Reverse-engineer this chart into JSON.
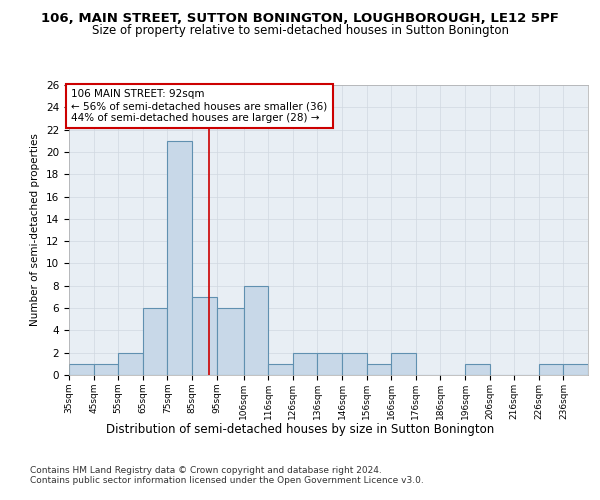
{
  "title1": "106, MAIN STREET, SUTTON BONINGTON, LOUGHBOROUGH, LE12 5PF",
  "title2": "Size of property relative to semi-detached houses in Sutton Bonington",
  "xlabel": "Distribution of semi-detached houses by size in Sutton Bonington",
  "ylabel": "Number of semi-detached properties",
  "footer1": "Contains HM Land Registry data © Crown copyright and database right 2024.",
  "footer2": "Contains public sector information licensed under the Open Government Licence v3.0.",
  "annotation_line1": "106 MAIN STREET: 92sqm",
  "annotation_line2": "← 56% of semi-detached houses are smaller (36)",
  "annotation_line3": "44% of semi-detached houses are larger (28) →",
  "subject_value": 92,
  "bin_edges": [
    35,
    45,
    55,
    65,
    75,
    85,
    95,
    106,
    116,
    126,
    136,
    146,
    156,
    166,
    176,
    186,
    196,
    206,
    216,
    226,
    236,
    246
  ],
  "bin_labels": [
    "35sqm",
    "45sqm",
    "55sqm",
    "65sqm",
    "75sqm",
    "85sqm",
    "95sqm",
    "106sqm",
    "116sqm",
    "126sqm",
    "136sqm",
    "146sqm",
    "156sqm",
    "166sqm",
    "176sqm",
    "186sqm",
    "196sqm",
    "206sqm",
    "216sqm",
    "226sqm",
    "236sqm"
  ],
  "values": [
    1,
    1,
    2,
    6,
    21,
    7,
    6,
    8,
    1,
    2,
    2,
    2,
    1,
    2,
    0,
    0,
    1,
    0,
    0,
    1,
    1
  ],
  "bar_color": "#c8d8e8",
  "bar_edge_color": "#6090b0",
  "bar_linewidth": 0.8,
  "vline_color": "#cc0000",
  "vline_x": 92,
  "ylim": [
    0,
    26
  ],
  "yticks": [
    0,
    2,
    4,
    6,
    8,
    10,
    12,
    14,
    16,
    18,
    20,
    22,
    24,
    26
  ],
  "grid_color": "#d0d8e0",
  "background_color": "#e8eef4",
  "box_color": "#ffffff",
  "box_edge_color": "#cc0000",
  "title1_fontsize": 9.5,
  "title2_fontsize": 8.5,
  "xlabel_fontsize": 8.5,
  "ylabel_fontsize": 7.5,
  "annotation_fontsize": 7.5,
  "footer_fontsize": 6.5
}
